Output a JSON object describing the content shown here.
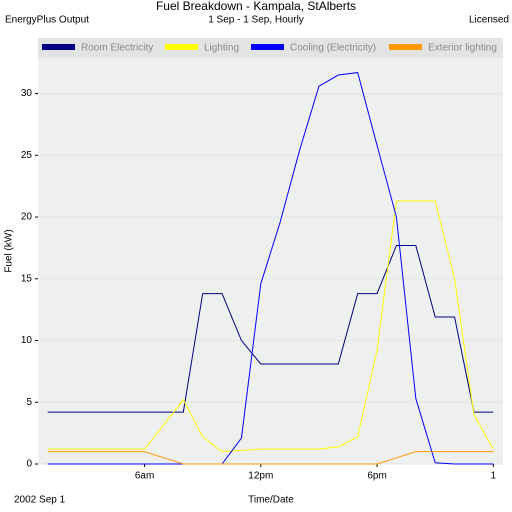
{
  "chart_data": {
    "type": "line",
    "title": "Fuel Breakdown - Kampala, StAlberts",
    "header_left": "EnergyPlus Output",
    "subtitle": "1 Sep - 1 Sep, Hourly",
    "header_right": "Licensed",
    "ylabel": "Fuel (kW)",
    "xlabel": "Time/Date",
    "date_label": "2002 Sep  1",
    "x": [
      1,
      2,
      3,
      4,
      5,
      6,
      7,
      8,
      9,
      10,
      11,
      12,
      13,
      14,
      15,
      16,
      17,
      18,
      19,
      20,
      21,
      22,
      23,
      24
    ],
    "xlim": [
      0.5,
      24.5
    ],
    "xticks": [
      {
        "value": 6,
        "label": "6am"
      },
      {
        "value": 12,
        "label": "12pm"
      },
      {
        "value": 18,
        "label": "6pm"
      },
      {
        "value": 24,
        "label": "1"
      }
    ],
    "ylim": [
      0,
      34.5
    ],
    "yticks": [
      0,
      5,
      10,
      15,
      20,
      25,
      30
    ],
    "grid": true,
    "legend": "top",
    "series": [
      {
        "name": "Room Electricity",
        "color": "#000080",
        "values": [
          4.2,
          4.2,
          4.2,
          4.2,
          4.2,
          4.2,
          4.2,
          4.2,
          13.8,
          13.8,
          10,
          8.1,
          8.1,
          8.1,
          8.1,
          8.1,
          13.8,
          13.8,
          17.7,
          17.7,
          11.9,
          11.9,
          4.2,
          4.2
        ]
      },
      {
        "name": "Lighting",
        "color": "#ffff00",
        "values": [
          1.2,
          1.2,
          1.2,
          1.2,
          1.2,
          1.2,
          3.2,
          5.2,
          2.2,
          1.0,
          1.1,
          1.2,
          1.2,
          1.2,
          1.2,
          1.4,
          2.2,
          9.2,
          21.3,
          21.3,
          21.3,
          15,
          4,
          1.2
        ]
      },
      {
        "name": "Cooling (Electricity)",
        "color": "#0000ff",
        "values": [
          0,
          0,
          0,
          0,
          0,
          0,
          0,
          0,
          0,
          0,
          2.1,
          14.6,
          19.6,
          25.4,
          30.6,
          31.5,
          31.7,
          25.8,
          20.0,
          5.3,
          0.1,
          0,
          0,
          0
        ]
      },
      {
        "name": "Exterior lighting",
        "color": "#ff9900",
        "values": [
          1,
          1,
          1,
          1,
          1,
          1,
          0.5,
          0,
          0,
          0,
          0,
          0,
          0,
          0,
          0,
          0,
          0,
          0,
          0.5,
          1,
          1,
          1,
          1,
          1
        ]
      }
    ]
  }
}
